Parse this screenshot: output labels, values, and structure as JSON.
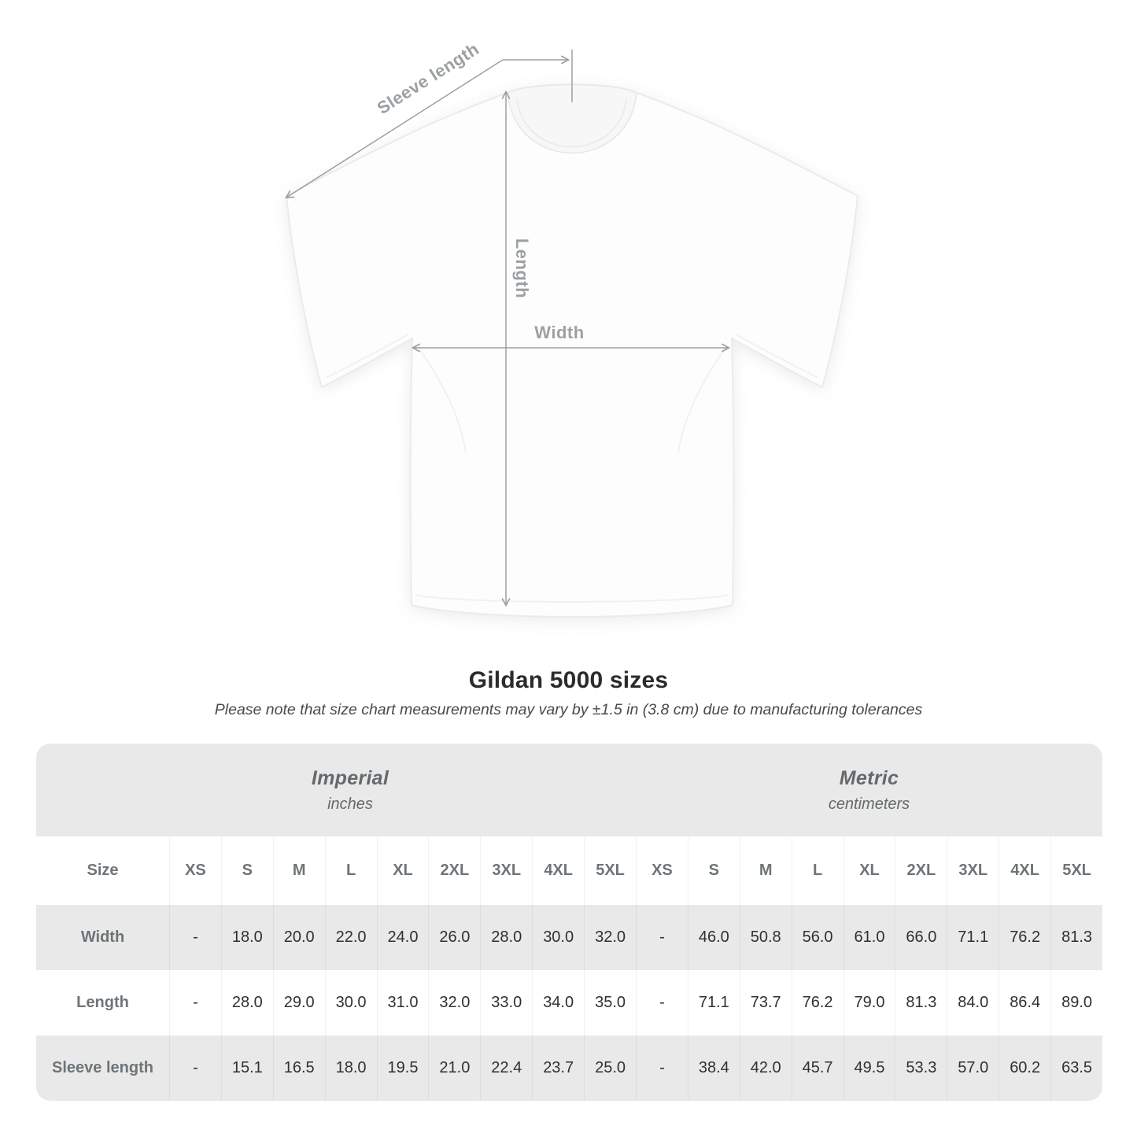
{
  "diagram": {
    "labels": {
      "sleeve": "Sleeve length",
      "length": "Length",
      "width": "Width"
    }
  },
  "heading": {
    "title": "Gildan 5000 sizes",
    "subtitle": "Please note that size chart measurements may vary by ±1.5 in (3.8 cm) due to manufacturing tolerances"
  },
  "table": {
    "size_header": "Size",
    "sections": [
      {
        "label": "Imperial",
        "unit": "inches"
      },
      {
        "label": "Metric",
        "unit": "centimeters"
      }
    ],
    "sizes": [
      "XS",
      "S",
      "M",
      "L",
      "XL",
      "2XL",
      "3XL",
      "4XL",
      "5XL"
    ],
    "rows": [
      {
        "label": "Width",
        "imperial": [
          "-",
          "18.0",
          "20.0",
          "22.0",
          "24.0",
          "26.0",
          "28.0",
          "30.0",
          "32.0"
        ],
        "metric": [
          "-",
          "46.0",
          "50.8",
          "56.0",
          "61.0",
          "66.0",
          "71.1",
          "76.2",
          "81.3"
        ]
      },
      {
        "label": "Length",
        "imperial": [
          "-",
          "28.0",
          "29.0",
          "30.0",
          "31.0",
          "32.0",
          "33.0",
          "34.0",
          "35.0"
        ],
        "metric": [
          "-",
          "71.1",
          "73.7",
          "76.2",
          "79.0",
          "81.3",
          "84.0",
          "86.4",
          "89.0"
        ]
      },
      {
        "label": "Sleeve length",
        "imperial": [
          "-",
          "15.1",
          "16.5",
          "18.0",
          "19.5",
          "21.0",
          "22.4",
          "23.7",
          "25.0"
        ],
        "metric": [
          "-",
          "38.4",
          "42.0",
          "45.7",
          "49.5",
          "53.3",
          "57.0",
          "60.2",
          "63.5"
        ]
      }
    ]
  },
  "colors": {
    "table_band": "#e9e9e9",
    "table_alt_row": "#e9e9e9",
    "table_text": "#303030",
    "header_text": "#6e7477",
    "diagram_label": "#9ca0a3",
    "arrow": "#9aa0a3",
    "title_text": "#2b2b2b",
    "subtitle_text": "#4a4a4a"
  }
}
